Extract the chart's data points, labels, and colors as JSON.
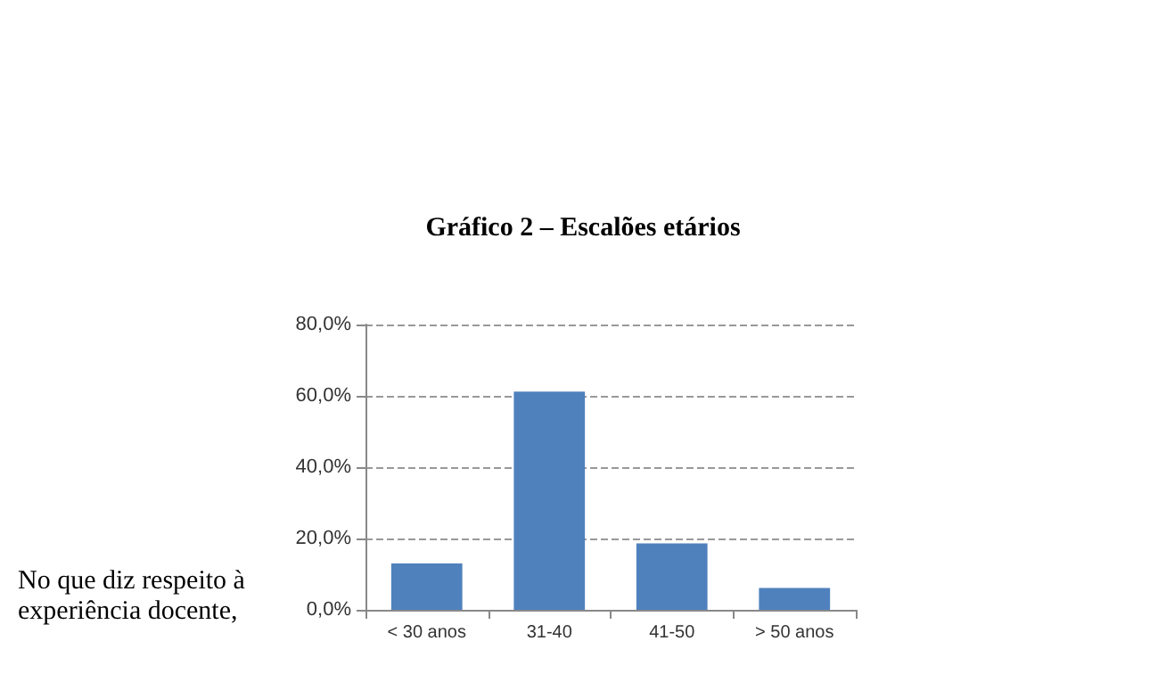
{
  "chart_data": {
    "type": "bar",
    "title": "Gráfico 2 – Escalões etários",
    "categories": [
      "< 30 anos",
      "31-40",
      "41-50",
      "> 50 anos"
    ],
    "values": [
      13.0,
      61.2,
      18.6,
      6.1
    ],
    "color": "#4f81bd",
    "ylim": [
      0,
      80
    ],
    "yticks": [
      {
        "value": 0,
        "label": "0,0%"
      },
      {
        "value": 20,
        "label": "20,0%"
      },
      {
        "value": 40,
        "label": "40,0%"
      },
      {
        "value": 60,
        "label": "60,0%"
      },
      {
        "value": 80,
        "label": "80,0%"
      }
    ],
    "grid": "y",
    "annotations": [
      "No que diz respeito à experiência docente,"
    ]
  }
}
